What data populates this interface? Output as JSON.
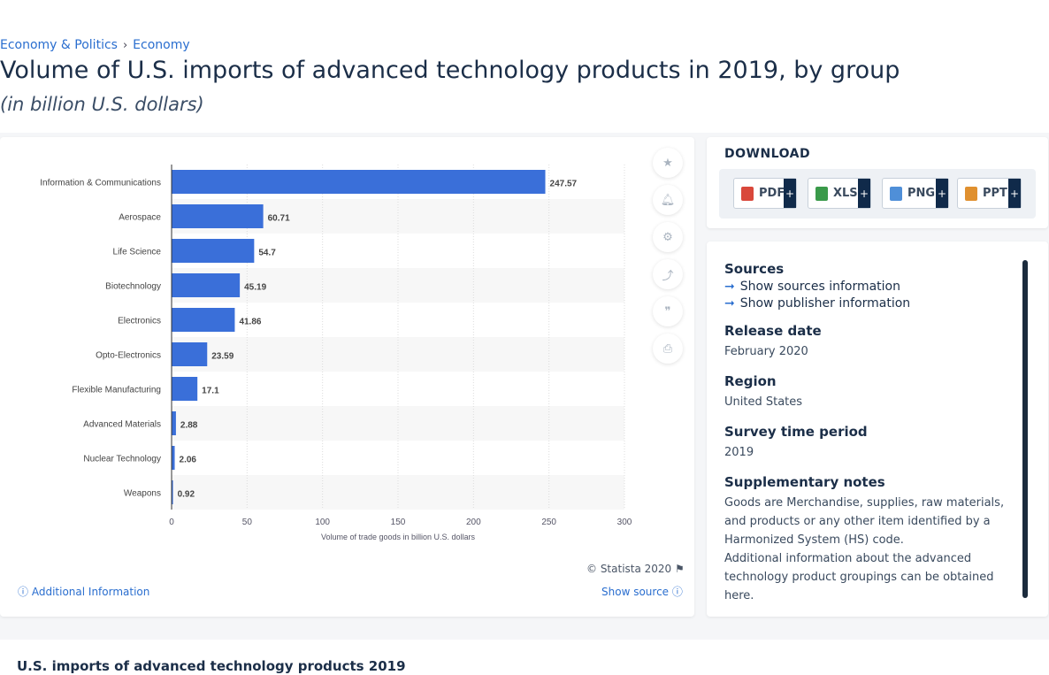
{
  "breadcrumb": [
    "Economy & Politics",
    "Economy"
  ],
  "title": "Volume of U.S. imports of advanced technology products in 2019, by group",
  "subtitle": "(in billion U.S. dollars)",
  "chart_data": {
    "type": "bar",
    "orientation": "horizontal",
    "categories": [
      "Information & Communications",
      "Aerospace",
      "Life Science",
      "Biotechnology",
      "Electronics",
      "Opto-Electronics",
      "Flexible Manufacturing",
      "Advanced Materials",
      "Nuclear Technology",
      "Weapons"
    ],
    "values": [
      247.57,
      60.71,
      54.7,
      45.19,
      41.86,
      23.59,
      17.1,
      2.88,
      2.06,
      0.92
    ],
    "value_labels": [
      "247.57",
      "60.71",
      "54.7",
      "45.19",
      "41.86",
      "23.59",
      "17.1",
      "2.88",
      "2.06",
      "0.92"
    ],
    "xlabel": "Volume of trade goods in billion U.S. dollars",
    "xlim": [
      0,
      300
    ],
    "xticks": [
      "0",
      "50",
      "100",
      "150",
      "200",
      "250",
      "300"
    ],
    "bar_color": "#3a6fd9",
    "grid": true
  },
  "copyright": "© Statista 2020",
  "additional_info": "Additional Information",
  "show_source": "Show source",
  "download": {
    "title": "DOWNLOAD",
    "buttons": [
      "PDF",
      "XLS",
      "PNG",
      "PPT"
    ],
    "plus": "+"
  },
  "info": {
    "sources_heading": "Sources",
    "show_sources": "Show sources information",
    "show_publisher": "Show publisher information",
    "release_heading": "Release date",
    "release_value": "February 2020",
    "region_heading": "Region",
    "region_value": "United States",
    "survey_heading": "Survey time period",
    "survey_value": "2019",
    "notes_heading": "Supplementary notes",
    "notes_value": "Goods are Merchandise, supplies, raw materials, and products or any other item identified by a Harmonized System (HS) code.",
    "notes_value2": "Additional information about the advanced technology product groupings can be obtained here."
  },
  "bottom_title": "U.S. imports of advanced technology products 2019"
}
